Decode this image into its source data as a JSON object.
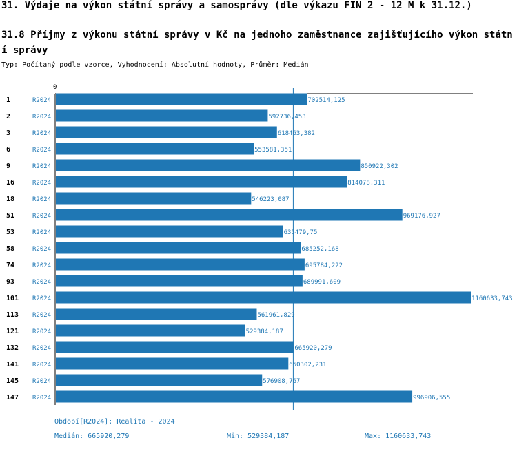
{
  "header": {
    "title": "31. Výdaje na výkon státní správy a samosprávy (dle výkazu FIN 2 - 12 M k 31.12.)",
    "subtitle": "31.8 Příjmy z výkonu státní správy v Kč na jednoho zaměstnance zajišťujícího výkon státní správy",
    "type_line": "Typ: Počítaný podle vzorce, Vyhodnocení: Absolutní hodnoty, Průměr: Medián"
  },
  "footer": {
    "period": "Období[R2024]: Realita - 2024",
    "median": "Medián: 665920,279",
    "min": "Min: 529384,187",
    "max": "Max: 1160633,743"
  },
  "colors": {
    "bar": "#1f77b4",
    "text": "#000000",
    "accent": "#1f77b4"
  },
  "chart_data": {
    "type": "bar",
    "orientation": "horizontal",
    "title": "31.8 Příjmy z výkonu státní správy v Kč na jednoho zaměstnance zajišťujícího výkon státní správy",
    "series_name": "R2024",
    "categories": [
      "1",
      "2",
      "3",
      "6",
      "9",
      "16",
      "18",
      "51",
      "53",
      "58",
      "74",
      "93",
      "101",
      "113",
      "121",
      "132",
      "141",
      "145",
      "147"
    ],
    "values": [
      702514.125,
      592736.453,
      618463.382,
      553581.351,
      850922.302,
      814078.311,
      546223.087,
      969176.927,
      635479.75,
      685252.168,
      695784.222,
      689991.609,
      1160633.743,
      561961.829,
      529384.187,
      665920.279,
      650302.231,
      576908.767,
      996906.555
    ],
    "value_labels": [
      "702514,125",
      "592736,453",
      "618463,382",
      "553581,351",
      "850922,302",
      "814078,311",
      "546223,087",
      "969176,927",
      "635479,75",
      "685252,168",
      "695784,222",
      "689991,609",
      "1160633,743",
      "561961,829",
      "529384,187",
      "665920,279",
      "650302,231",
      "576908,767",
      "996906,555"
    ],
    "median": 665920.279,
    "min": 529384.187,
    "max": 1160633.743,
    "xlim": [
      0,
      1160633.743
    ],
    "x_tick_label": "0",
    "reference_line": "median"
  }
}
